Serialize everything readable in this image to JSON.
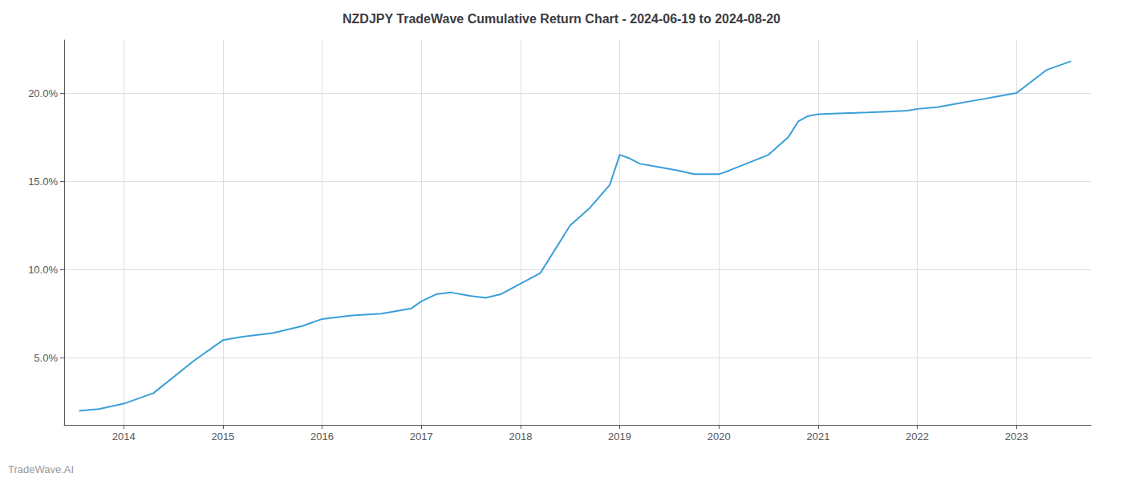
{
  "chart_data": {
    "type": "line",
    "title": "NZDJPY TradeWave Cumulative Return Chart - 2024-06-19 to 2024-08-20",
    "annotations": [
      "TradeWave.AI"
    ],
    "x": [
      2013.55,
      2013.75,
      2014.0,
      2014.3,
      2014.7,
      2015.0,
      2015.2,
      2015.5,
      2015.8,
      2016.0,
      2016.3,
      2016.6,
      2016.9,
      2017.0,
      2017.15,
      2017.3,
      2017.5,
      2017.65,
      2017.8,
      2018.0,
      2018.2,
      2018.5,
      2018.7,
      2018.9,
      2019.0,
      2019.1,
      2019.2,
      2019.4,
      2019.6,
      2019.75,
      2019.9,
      2020.0,
      2020.1,
      2020.5,
      2020.7,
      2020.8,
      2020.9,
      2021.0,
      2021.2,
      2021.5,
      2021.7,
      2021.9,
      2022.0,
      2022.2,
      2022.4,
      2022.6,
      2022.8,
      2023.0,
      2023.3,
      2023.55
    ],
    "values": [
      2.0,
      2.1,
      2.4,
      3.0,
      4.8,
      6.0,
      6.2,
      6.4,
      6.8,
      7.2,
      7.4,
      7.5,
      7.8,
      8.2,
      8.6,
      8.7,
      8.5,
      8.4,
      8.6,
      9.2,
      9.8,
      12.5,
      13.5,
      14.8,
      16.5,
      16.3,
      16.0,
      15.8,
      15.6,
      15.4,
      15.4,
      15.4,
      15.6,
      16.5,
      17.5,
      18.4,
      18.7,
      18.8,
      18.85,
      18.9,
      18.95,
      19.0,
      19.1,
      19.2,
      19.4,
      19.6,
      19.8,
      20.0,
      21.3,
      21.8
    ],
    "color": "#3a9fd8",
    "xlim": [
      2013.4,
      2023.75
    ],
    "xticks": [
      2014,
      2015,
      2016,
      2017,
      2018,
      2019,
      2020,
      2021,
      2022,
      2023
    ],
    "ylim": [
      1.2,
      23.0
    ],
    "yticks": [
      {
        "value": 5.0,
        "label": "5.0%"
      },
      {
        "value": 10.0,
        "label": "10.0%"
      },
      {
        "value": 15.0,
        "label": "15.0%"
      },
      {
        "value": 20.0,
        "label": "20.0%"
      }
    ],
    "grid": true
  }
}
